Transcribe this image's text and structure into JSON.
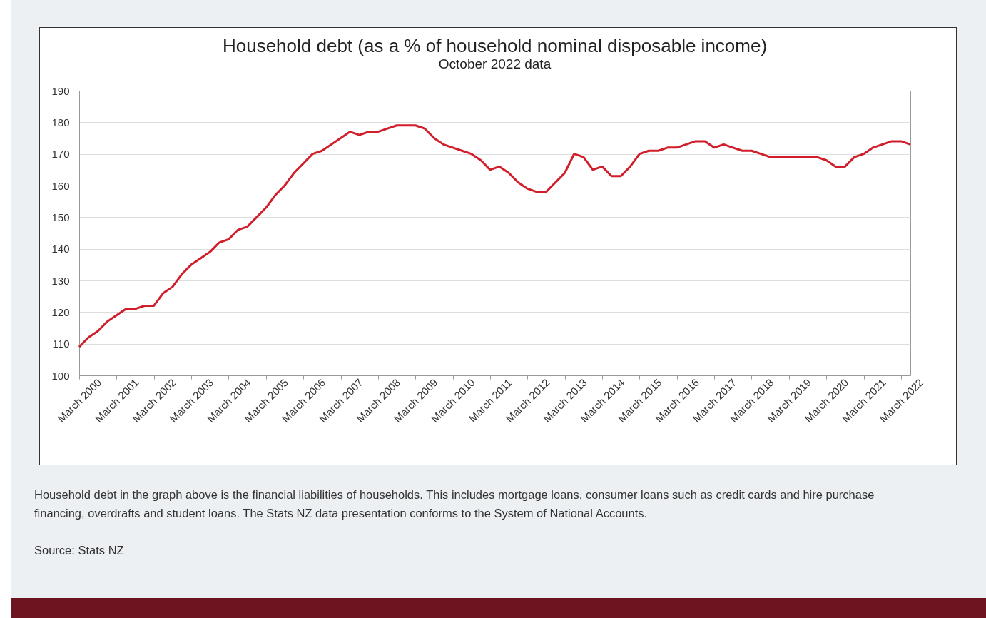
{
  "chart_data": {
    "type": "line",
    "title": "Household debt (as a % of household nominal disposable income)",
    "subtitle": "October 2022 data",
    "categories": [
      "March 2000",
      null,
      null,
      null,
      "March 2001",
      null,
      null,
      null,
      "March 2002",
      null,
      null,
      null,
      "March 2003",
      null,
      null,
      null,
      "March 2004",
      null,
      null,
      null,
      "March 2005",
      null,
      null,
      null,
      "March 2006",
      null,
      null,
      null,
      "March 2007",
      null,
      null,
      null,
      "March 2008",
      null,
      null,
      null,
      "March 2009",
      null,
      null,
      null,
      "March 2010",
      null,
      null,
      null,
      "March 2011",
      null,
      null,
      null,
      "March 2012",
      null,
      null,
      null,
      "March 2013",
      null,
      null,
      null,
      "March 2014",
      null,
      null,
      null,
      "March 2015",
      null,
      null,
      null,
      "March 2016",
      null,
      null,
      null,
      "March 2017",
      null,
      null,
      null,
      "March 2018",
      null,
      null,
      null,
      "March 2019",
      null,
      null,
      null,
      "March 2020",
      null,
      null,
      null,
      "March 2021",
      null,
      null,
      null,
      "March 2022",
      null
    ],
    "series": [
      {
        "color": "#d01f2a",
        "values": [
          109,
          112,
          114,
          117,
          119,
          121,
          121,
          122,
          122,
          126,
          128,
          132,
          135,
          137,
          139,
          142,
          143,
          146,
          147,
          150,
          153,
          157,
          160,
          164,
          167,
          170,
          171,
          173,
          175,
          177,
          176,
          177,
          177,
          178,
          179,
          179,
          179,
          178,
          175,
          173,
          172,
          171,
          170,
          168,
          165,
          166,
          164,
          161,
          159,
          158,
          158,
          161,
          164,
          170,
          169,
          165,
          166,
          163,
          163,
          166,
          170,
          171,
          171,
          172,
          172,
          173,
          174,
          174,
          172,
          173,
          172,
          171,
          171,
          170,
          169,
          169,
          169,
          169,
          169,
          169,
          168,
          166,
          166,
          169,
          170,
          172,
          173,
          174,
          174,
          173
        ]
      }
    ],
    "ylim": [
      100,
      190
    ],
    "yticks": [
      100,
      110,
      120,
      130,
      140,
      150,
      160,
      170,
      180,
      190
    ],
    "grid": "y",
    "legend": false,
    "marker": "none",
    "line_style": "solid",
    "annotations": [
      "Household debt in the graph above is the financial liabilities of households. This includes mortgage loans, consumer loans such as credit cards and hire purchase financing, overdrafts and student loans. The Stats NZ data presentation conforms to the System of National Accounts.",
      "Source: Stats NZ"
    ]
  }
}
